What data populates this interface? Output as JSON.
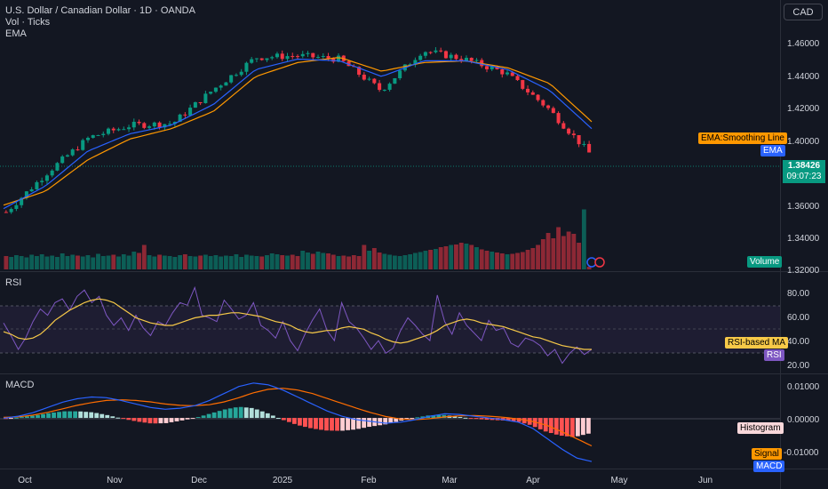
{
  "header": {
    "title": "U.S. Dollar / Canadian Dollar · 1D · OANDA",
    "vol_label": "Vol · Ticks",
    "ema_label": "EMA",
    "currency": "CAD"
  },
  "price_axis": {
    "ticks": [
      "1.46000",
      "1.44000",
      "1.42000",
      "1.40000",
      "1.38000",
      "1.36000",
      "1.34000",
      "1.32000"
    ],
    "last_price": "1.38426",
    "countdown": "09:07:23"
  },
  "tags": {
    "ema_smoothing": "EMA:Smoothing Line",
    "ema": "EMA",
    "volume": "Volume",
    "rsi_ma": "RSI-based MA",
    "rsi": "RSI",
    "histogram": "Histogram",
    "signal": "Signal",
    "macd": "MACD"
  },
  "rsi_pane": {
    "label": "RSI",
    "ticks": [
      "80.00",
      "60.00",
      "40.00",
      "20.00"
    ]
  },
  "macd_pane": {
    "label": "MACD",
    "ticks": [
      "0.01000",
      "0.00000",
      "-0.01000"
    ]
  },
  "time_axis": {
    "labels": [
      "Oct",
      "Nov",
      "Dec",
      "2025",
      "Feb",
      "Mar",
      "Apr",
      "May",
      "Jun"
    ]
  },
  "colors": {
    "bg": "#131722",
    "up": "#089981",
    "down": "#f23645",
    "ema": "#2962ff",
    "ema_smoothing": "#ff9800",
    "rsi": "#7e57c2",
    "rsi_ma": "#f7c948",
    "macd": "#2962ff",
    "signal": "#ff6d00"
  },
  "chart_data": [
    {
      "type": "line",
      "title": "U.S. Dollar / Canadian Dollar · 1D · OANDA",
      "x": [
        "2024-09-26",
        "2024-10-15",
        "2024-11-01",
        "2024-11-15",
        "2024-12-02",
        "2024-12-16",
        "2025-01-01",
        "2025-01-13",
        "2025-02-03",
        "2025-02-14",
        "2025-03-03",
        "2025-03-14",
        "2025-04-01",
        "2025-04-09",
        "2025-04-17"
      ],
      "series": [
        {
          "name": "U.S. Dollar / Canadian Dollar",
          "values": [
            1.35,
            1.373,
            1.393,
            1.4,
            1.401,
            1.421,
            1.439,
            1.44,
            1.438,
            1.42,
            1.443,
            1.438,
            1.43,
            1.41,
            1.384
          ]
        },
        {
          "name": "EMA",
          "values": [
            1.352,
            1.365,
            1.385,
            1.395,
            1.4,
            1.412,
            1.432,
            1.438,
            1.437,
            1.428,
            1.437,
            1.437,
            1.432,
            1.42,
            1.398
          ]
        },
        {
          "name": "EMA:Smoothing Line",
          "values": [
            1.354,
            1.362,
            1.38,
            1.392,
            1.398,
            1.408,
            1.428,
            1.436,
            1.439,
            1.431,
            1.436,
            1.437,
            1.433,
            1.424,
            1.402
          ]
        }
      ],
      "ylim": [
        1.316,
        1.472
      ]
    },
    {
      "type": "bar",
      "title": "Vol · Ticks",
      "series": [
        {
          "name": "Volume",
          "values": [
            30,
            28,
            32,
            30,
            27,
            33,
            30,
            34,
            29,
            31,
            28,
            36,
            30,
            33,
            31,
            29,
            32,
            27,
            35,
            30,
            31,
            33,
            29,
            34,
            31,
            40,
            37,
            55,
            32,
            29,
            33,
            31,
            30,
            28,
            32,
            34,
            30,
            29,
            31,
            33,
            30,
            32,
            29,
            31,
            30,
            34,
            28,
            33,
            31,
            30,
            29,
            32,
            36,
            34,
            32,
            31,
            33,
            30,
            42,
            38,
            35,
            40,
            37,
            36,
            33,
            30,
            31,
            29,
            32,
            30,
            55,
            42,
            48,
            38,
            35,
            33,
            31,
            30,
            32,
            34,
            37,
            39,
            42,
            44,
            46,
            50,
            52,
            55,
            56,
            60,
            58,
            55,
            50,
            45,
            42,
            40,
            38,
            36,
            34,
            35,
            37,
            39,
            44,
            48,
            55,
            68,
            82,
            70,
            95,
            75,
            85,
            80,
            60,
            135,
            6
          ]
        }
      ]
    },
    {
      "type": "line",
      "title": "RSI",
      "series": [
        {
          "name": "RSI",
          "values": [
            54,
            44,
            33,
            42,
            55,
            65,
            60,
            70,
            73,
            64,
            75,
            80,
            70,
            75,
            60,
            52,
            58,
            48,
            60,
            50,
            44,
            55,
            52,
            62,
            70,
            68,
            82,
            60,
            58,
            55,
            72,
            65,
            57,
            60,
            70,
            52,
            48,
            42,
            55,
            40,
            32,
            45,
            56,
            65,
            48,
            40,
            70,
            55,
            50,
            42,
            33,
            40,
            30,
            34,
            48,
            58,
            52,
            45,
            40,
            76,
            55,
            45,
            62,
            52,
            46,
            40,
            56,
            48,
            50,
            38,
            35,
            42,
            40,
            36,
            28,
            33,
            22,
            30,
            35,
            29,
            33
          ]
        },
        {
          "name": "RSI-based MA",
          "values": [
            47,
            45,
            42,
            41,
            42,
            45,
            50,
            56,
            60,
            64,
            67,
            70,
            72,
            73,
            72,
            70,
            66,
            62,
            58,
            56,
            54,
            53,
            52,
            52,
            54,
            56,
            58,
            59,
            60,
            60,
            61,
            62,
            62,
            61,
            60,
            59,
            57,
            55,
            54,
            52,
            49,
            47,
            46,
            47,
            48,
            48,
            50,
            51,
            50,
            49,
            46,
            44,
            41,
            39,
            38,
            39,
            41,
            43,
            45,
            48,
            52,
            54,
            56,
            57,
            56,
            54,
            53,
            52,
            51,
            49,
            47,
            45,
            43,
            42,
            40,
            38,
            36,
            35,
            34,
            33,
            33
          ]
        }
      ],
      "ylim": [
        14,
        90
      ]
    },
    {
      "type": "line",
      "title": "MACD",
      "series": [
        {
          "name": "MACD",
          "values": [
            -0.0001,
            0.0005,
            0.0015,
            0.003,
            0.0045,
            0.0055,
            0.006,
            0.0058,
            0.005,
            0.004,
            0.003,
            0.0025,
            0.0028,
            0.0035,
            0.005,
            0.007,
            0.009,
            0.01,
            0.0095,
            0.008,
            0.006,
            0.004,
            0.002,
            0.0005,
            -0.0005,
            -0.001,
            -0.0015,
            -0.0012,
            -0.0005,
            0.0005,
            0.0012,
            0.001,
            0.0005,
            0.0,
            -0.0005,
            -0.0012,
            -0.003,
            -0.006,
            -0.009,
            -0.0115,
            -0.0125
          ]
        },
        {
          "name": "Signal",
          "values": [
            0.0002,
            0.0003,
            0.0008,
            0.0016,
            0.0026,
            0.0036,
            0.0044,
            0.005,
            0.0052,
            0.005,
            0.0046,
            0.004,
            0.0036,
            0.0035,
            0.0038,
            0.0046,
            0.0058,
            0.0072,
            0.0082,
            0.0085,
            0.008,
            0.007,
            0.0056,
            0.0042,
            0.0028,
            0.0015,
            0.0004,
            -0.0003,
            -0.0005,
            -0.0002,
            0.0003,
            0.0006,
            0.0007,
            0.0005,
            0.0002,
            -0.0003,
            -0.001,
            -0.0022,
            -0.004,
            -0.006,
            -0.008
          ]
        }
      ],
      "ylim": [
        -0.0145,
        0.0125
      ]
    }
  ]
}
